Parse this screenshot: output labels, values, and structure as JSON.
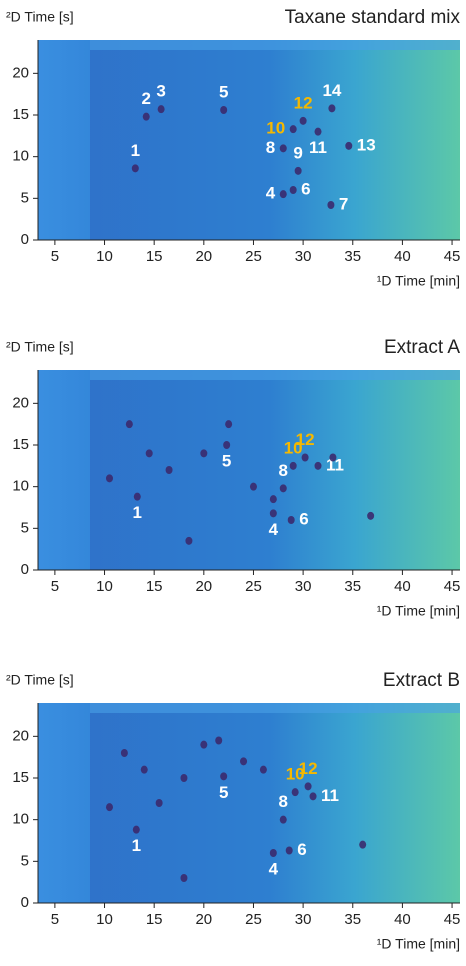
{
  "chart_data": [
    {
      "type": "scatter",
      "title": "Taxane standard mix",
      "x_label": "¹D Time [min]",
      "y_label": "²D Time [s]",
      "xlim": [
        3.3,
        45.8
      ],
      "ylim": [
        0,
        24
      ],
      "xticks": [
        5,
        10,
        15,
        20,
        25,
        30,
        35,
        40,
        45
      ],
      "yticks": [
        0,
        5,
        10,
        15,
        20
      ],
      "spot_color": "#3b2a6e",
      "x": [
        13.1,
        14.2,
        15.7,
        22,
        28,
        29,
        32.8,
        28,
        29.5,
        29,
        31.5,
        30,
        34.6,
        32.9
      ],
      "y": [
        8.6,
        14.8,
        15.7,
        15.6,
        5.5,
        6,
        4.2,
        11,
        8.3,
        13.3,
        13,
        14.3,
        11.3,
        15.8
      ],
      "labels": [
        "1",
        "2",
        "3",
        "5",
        "4",
        "6",
        "7",
        "8",
        "9",
        "10",
        "11",
        "12",
        "13",
        "14"
      ],
      "label_colors": [
        "#ffffff",
        "#ffffff",
        "#ffffff",
        "#ffffff",
        "#ffffff",
        "#ffffff",
        "#ffffff",
        "#ffffff",
        "#ffffff",
        "#f5b800",
        "#ffffff",
        "#f5b800",
        "#ffffff",
        "#ffffff"
      ],
      "label_positions": [
        "above",
        "above",
        "above",
        "above",
        "left",
        "right",
        "right",
        "left",
        "above",
        "left",
        "below",
        "above",
        "right",
        "above"
      ]
    },
    {
      "type": "scatter",
      "title": "Extract A",
      "x_label": "¹D Time [min]",
      "y_label": "²D Time [s]",
      "xlim": [
        3.3,
        45.8
      ],
      "ylim": [
        0,
        24
      ],
      "xticks": [
        5,
        10,
        15,
        20,
        25,
        30,
        35,
        40,
        45
      ],
      "yticks": [
        0,
        5,
        10,
        15,
        20
      ],
      "spot_color": "#3b2a6e",
      "x": [
        13.3,
        27,
        22.3,
        28.8,
        28,
        29,
        31.5,
        30.2,
        12.5,
        14.5,
        16.5,
        20,
        22.5,
        25,
        27,
        33,
        36.8,
        10.5,
        18.5
      ],
      "y": [
        8.8,
        6.8,
        15,
        6,
        9.8,
        12.5,
        12.5,
        13.5,
        17.5,
        14,
        12,
        14,
        17.5,
        10,
        8.5,
        13.5,
        6.5,
        11,
        3.5
      ],
      "labels": [
        "1",
        "4",
        "5",
        "6",
        "8",
        "10",
        "11",
        "12",
        null,
        null,
        null,
        null,
        null,
        null,
        null,
        null,
        null,
        null,
        null
      ],
      "label_colors": [
        "#ffffff",
        "#ffffff",
        "#ffffff",
        "#ffffff",
        "#ffffff",
        "#f5b800",
        "#ffffff",
        "#f5b800",
        null,
        null,
        null,
        null,
        null,
        null,
        null,
        null,
        null,
        null,
        null
      ],
      "label_positions": [
        "below",
        "below",
        "below",
        "right",
        "above",
        "above",
        "right",
        "above",
        null,
        null,
        null,
        null,
        null,
        null,
        null,
        null,
        null,
        null,
        null
      ]
    },
    {
      "type": "scatter",
      "title": "Extract B",
      "x_label": "¹D Time [min]",
      "y_label": "²D Time [s]",
      "xlim": [
        3.3,
        45.8
      ],
      "ylim": [
        0,
        24
      ],
      "xticks": [
        5,
        10,
        15,
        20,
        25,
        30,
        35,
        40,
        45
      ],
      "yticks": [
        0,
        5,
        10,
        15,
        20
      ],
      "spot_color": "#3b2a6e",
      "x": [
        13.2,
        27,
        22,
        28.6,
        28,
        29.2,
        31,
        30.5,
        12,
        14,
        15.5,
        18,
        20,
        21.5,
        24,
        26,
        36,
        10.5,
        18
      ],
      "y": [
        8.8,
        6,
        15.2,
        6.3,
        10,
        13.3,
        12.8,
        14,
        18,
        16,
        12,
        15,
        19,
        19.5,
        17,
        16,
        7,
        11.5,
        3
      ],
      "labels": [
        "1",
        "4",
        "5",
        "6",
        "8",
        "10",
        "11",
        "12",
        null,
        null,
        null,
        null,
        null,
        null,
        null,
        null,
        null,
        null,
        null
      ],
      "label_colors": [
        "#ffffff",
        "#ffffff",
        "#ffffff",
        "#ffffff",
        "#ffffff",
        "#f5b800",
        "#ffffff",
        "#f5b800",
        null,
        null,
        null,
        null,
        null,
        null,
        null,
        null,
        null,
        null,
        null
      ],
      "label_positions": [
        "below",
        "below",
        "below",
        "right",
        "above",
        "above",
        "right",
        "above",
        null,
        null,
        null,
        null,
        null,
        null,
        null,
        null,
        null,
        null,
        null
      ]
    }
  ]
}
